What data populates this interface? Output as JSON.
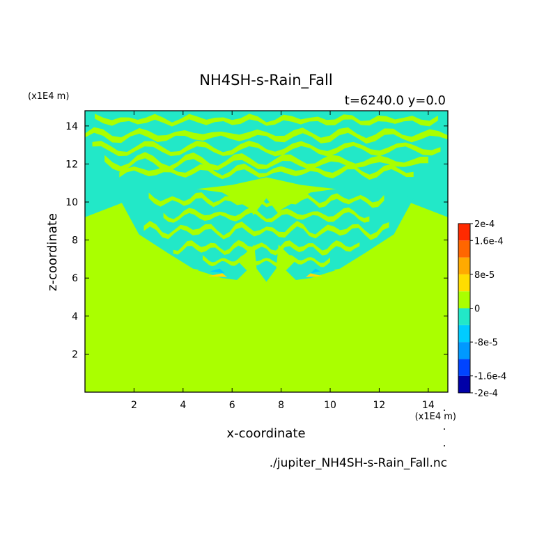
{
  "chart_data": {
    "type": "heatmap",
    "title": "NH4SH-s-Rain_Fall",
    "subtitle": "t=6240.0 y=0.0",
    "xlabel": "x-coordinate",
    "ylabel": "z-coordinate",
    "x_units": "(x1E4 m)",
    "y_units": "(x1E4 m)",
    "source_file": "./jupiter_NH4SH-s-Rain_Fall.nc",
    "xlim": [
      0,
      14.8
    ],
    "ylim": [
      0,
      14.8
    ],
    "x_ticks": [
      2,
      4,
      6,
      8,
      10,
      12,
      14
    ],
    "x_tick_labels": [
      "2",
      "4",
      "6",
      "8",
      "10",
      "12",
      "14"
    ],
    "y_ticks": [
      2,
      4,
      6,
      8,
      10,
      12,
      14
    ],
    "y_tick_labels": [
      "2",
      "4",
      "6",
      "8",
      "10",
      "12",
      "14"
    ],
    "colorbar": {
      "levels": [
        -0.0002,
        -0.00016,
        -0.00012,
        -8e-05,
        -4e-05,
        0,
        4e-05,
        8e-05,
        0.00012,
        0.00016,
        0.0002
      ],
      "colors": [
        "#0000a8",
        "#0044ff",
        "#0099ff",
        "#00ccff",
        "#22e8c8",
        "#aaff00",
        "#ffdd00",
        "#ffaa00",
        "#ff6600",
        "#ff2a00"
      ],
      "labels": [
        {
          "value": 0.0002,
          "text": "2e-4"
        },
        {
          "value": 0.00016,
          "text": "1.6e-4"
        },
        {
          "value": 8e-05,
          "text": "8e-5"
        },
        {
          "value": 0,
          "text": "0"
        },
        {
          "value": -8e-05,
          "text": "-8e-5"
        },
        {
          "value": -0.00016,
          "text": "-1.6e-4"
        },
        {
          "value": -0.0002,
          "text": "-2e-4"
        }
      ]
    },
    "background_value": 0,
    "regions": [
      {
        "value": -2e-05,
        "points": [
          [
            0,
            9.2
          ],
          [
            2,
            10.2
          ],
          [
            4,
            10.6
          ],
          [
            6,
            10.9
          ],
          [
            7.4,
            11.3
          ],
          [
            8.8,
            10.9
          ],
          [
            10.8,
            10.6
          ],
          [
            12.8,
            10.2
          ],
          [
            14.8,
            9.2
          ],
          [
            14.8,
            14.8
          ],
          [
            0,
            14.8
          ]
        ]
      },
      {
        "value": -2e-05,
        "points": [
          [
            1.4,
            10.2
          ],
          [
            3.4,
            10.9
          ],
          [
            5.6,
            10.5
          ],
          [
            6.8,
            9.6
          ],
          [
            7.1,
            8.0
          ],
          [
            6.3,
            7.0
          ],
          [
            5.5,
            6.2
          ],
          [
            4.4,
            6.5
          ],
          [
            3.4,
            7.3
          ],
          [
            2.2,
            8.3
          ]
        ]
      },
      {
        "value": -2e-05,
        "points": [
          [
            13.4,
            10.2
          ],
          [
            11.4,
            10.9
          ],
          [
            9.2,
            10.5
          ],
          [
            8.0,
            9.6
          ],
          [
            7.7,
            8.0
          ],
          [
            8.5,
            7.0
          ],
          [
            9.3,
            6.2
          ],
          [
            10.4,
            6.5
          ],
          [
            11.4,
            7.3
          ],
          [
            12.6,
            8.3
          ]
        ]
      },
      {
        "value": -2e-05,
        "points": [
          [
            6.8,
            9.2
          ],
          [
            7.4,
            10.2
          ],
          [
            8.0,
            9.2
          ],
          [
            7.8,
            6.5
          ],
          [
            7.4,
            5.8
          ],
          [
            7.0,
            6.5
          ]
        ]
      },
      {
        "value": -2e-05,
        "points": [
          [
            4.6,
            6.4
          ],
          [
            5.6,
            6.0
          ],
          [
            6.2,
            5.9
          ],
          [
            6.6,
            6.4
          ],
          [
            6.0,
            7.2
          ]
        ]
      },
      {
        "value": -2e-05,
        "points": [
          [
            10.2,
            6.4
          ],
          [
            9.2,
            6.0
          ],
          [
            8.6,
            5.9
          ],
          [
            8.2,
            6.4
          ],
          [
            8.8,
            7.2
          ]
        ]
      },
      {
        "value": -6e-05,
        "points": [
          [
            5.1,
            6.35
          ],
          [
            5.7,
            6.25
          ],
          [
            5.5,
            6.5
          ]
        ]
      },
      {
        "value": -6e-05,
        "points": [
          [
            9.6,
            6.35
          ],
          [
            9.2,
            6.25
          ],
          [
            9.4,
            6.5
          ]
        ]
      },
      {
        "value": 6e-05,
        "points": [
          [
            5.0,
            6.1
          ],
          [
            5.8,
            6.05
          ],
          [
            5.6,
            6.25
          ]
        ]
      },
      {
        "value": 6e-05,
        "points": [
          [
            9.7,
            6.1
          ],
          [
            9.0,
            6.05
          ],
          [
            9.2,
            6.25
          ]
        ]
      }
    ],
    "stripes": [
      {
        "value": 0,
        "x": [
          0.4,
          14.4
        ],
        "y": 14.3,
        "h": 0.3,
        "amp": 0.15,
        "period": 1.3
      },
      {
        "value": 0,
        "x": [
          0.0,
          14.8
        ],
        "y": 13.5,
        "h": 0.35,
        "amp": 0.2,
        "period": 1.7
      },
      {
        "value": 0,
        "x": [
          0.3,
          14.5
        ],
        "y": 12.8,
        "h": 0.3,
        "amp": 0.2,
        "period": 2.1
      },
      {
        "value": 0,
        "x": [
          0.8,
          14.0
        ],
        "y": 12.1,
        "h": 0.35,
        "amp": 0.25,
        "period": 1.9
      },
      {
        "value": 0,
        "x": [
          1.4,
          13.4
        ],
        "y": 11.6,
        "h": 0.3,
        "amp": 0.2,
        "period": 1.5
      },
      {
        "value": 0,
        "x": [
          2.6,
          12.2
        ],
        "y": 10.1,
        "h": 0.3,
        "amp": 0.2,
        "period": 1.1
      },
      {
        "value": 0,
        "x": [
          3.2,
          11.6
        ],
        "y": 9.3,
        "h": 0.3,
        "amp": 0.2,
        "period": 1.3
      },
      {
        "value": 0,
        "x": [
          2.4,
          12.4
        ],
        "y": 8.5,
        "h": 0.3,
        "amp": 0.25,
        "period": 1.2
      },
      {
        "value": 0,
        "x": [
          3.6,
          11.2
        ],
        "y": 7.6,
        "h": 0.3,
        "amp": 0.2,
        "period": 1.0
      },
      {
        "value": 0,
        "x": [
          4.8,
          10.0
        ],
        "y": 6.9,
        "h": 0.25,
        "amp": 0.15,
        "period": 0.9
      }
    ]
  }
}
